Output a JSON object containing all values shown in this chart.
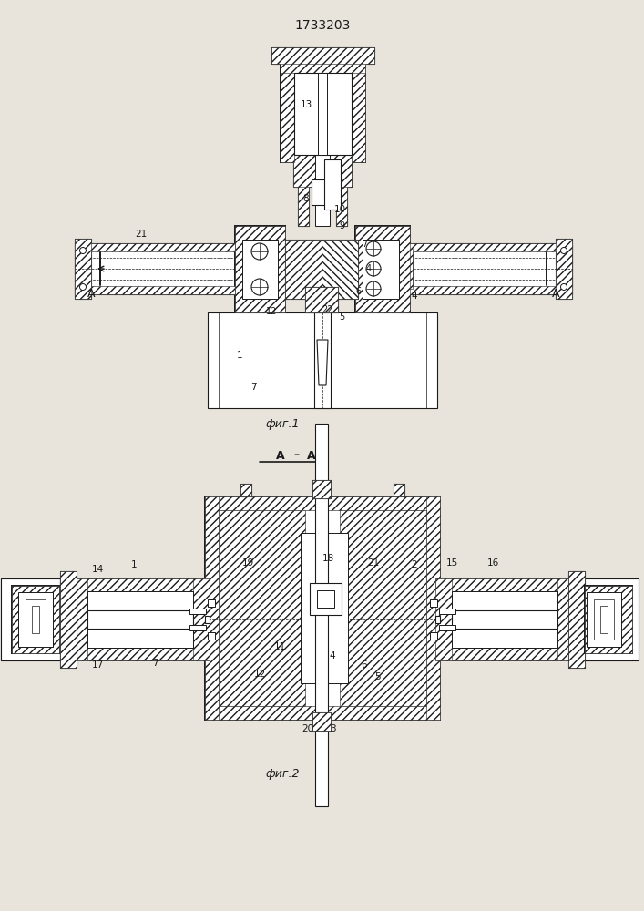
{
  "title": "1733203",
  "fig1_caption": "фиг.1",
  "fig2_caption": "фиг.2",
  "section_label": "A – A",
  "bg_color": "#e8e4dc",
  "line_color": "#1a1a1a",
  "line_width": 0.8,
  "bold_lw": 1.4
}
